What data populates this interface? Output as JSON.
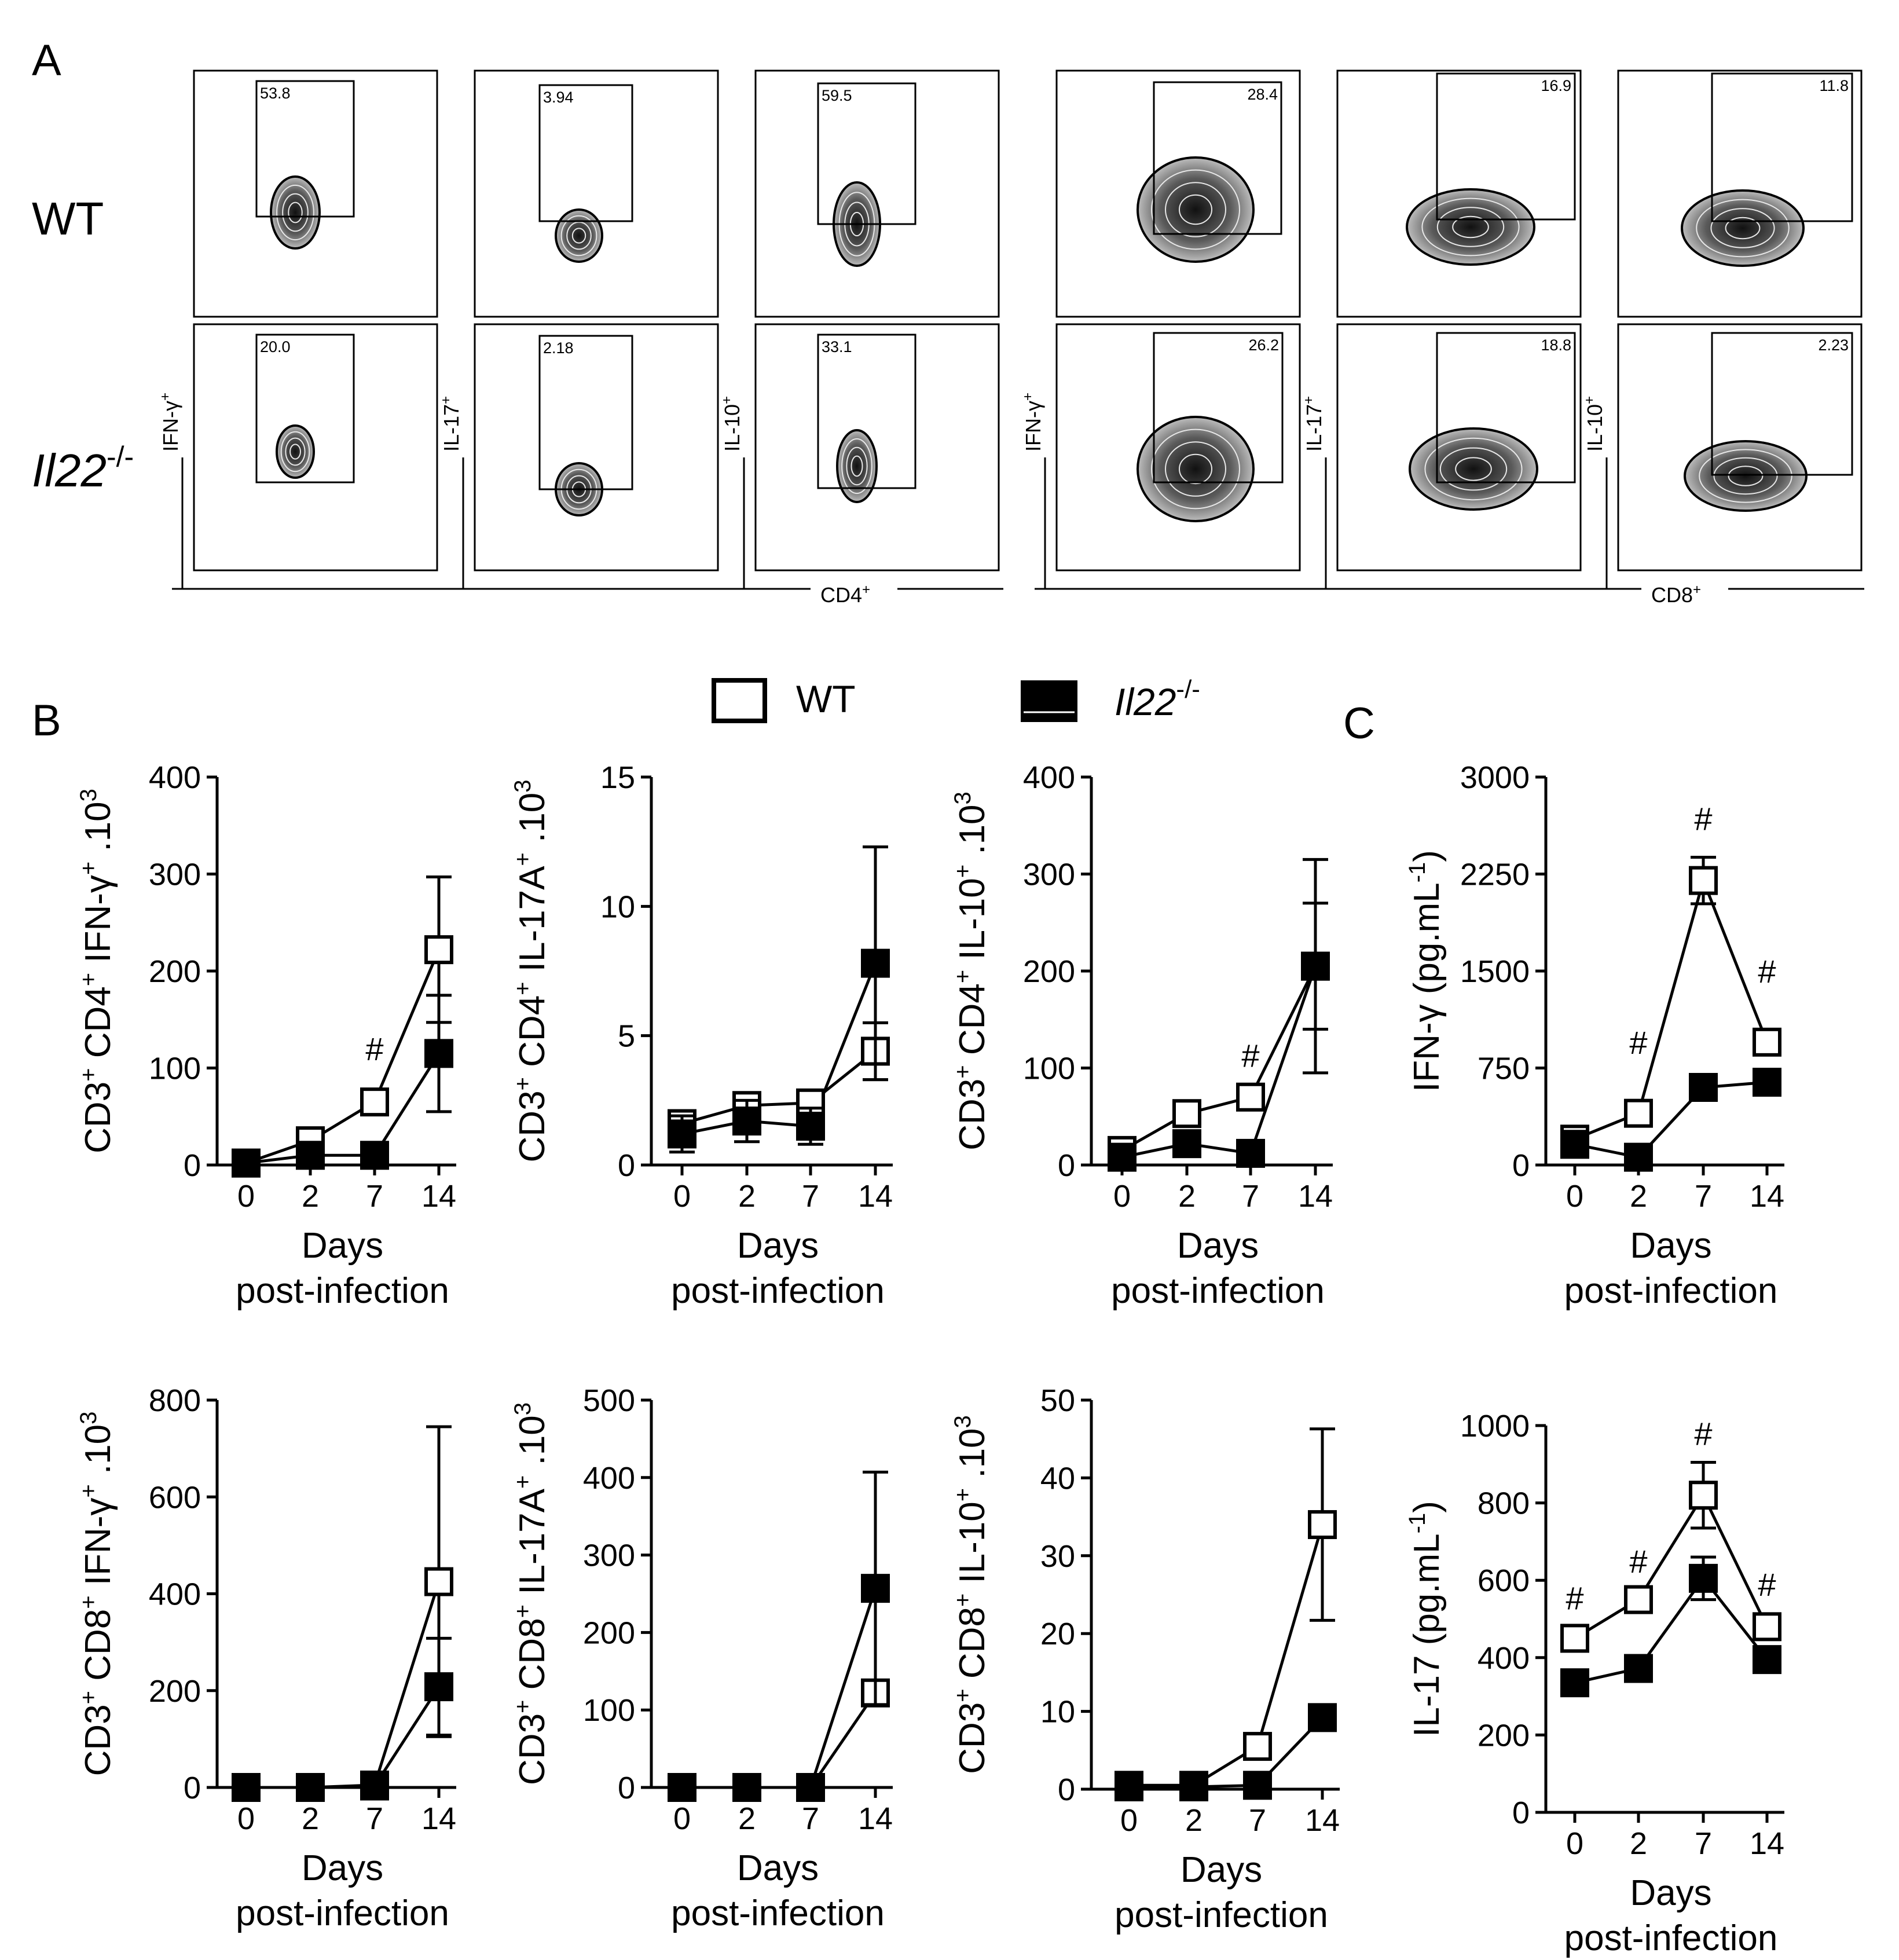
{
  "panel_labels": {
    "a": "A",
    "b": "B",
    "c": "C"
  },
  "legend": {
    "wt_label": "WT",
    "ko_label_italic": "Il22",
    "ko_label_sup": "-/-"
  },
  "flow_cytometry": {
    "row_labels": {
      "wt": "WT",
      "ko_italic": "Il22",
      "ko_sup": "-/-"
    },
    "y_axis_labels": [
      {
        "text": "IFN-γ",
        "sup": "+"
      },
      {
        "text": "IL-17",
        "sup": "+"
      },
      {
        "text": "IL-10",
        "sup": "+"
      },
      {
        "text": "IFN-γ",
        "sup": "+"
      },
      {
        "text": "IL-17",
        "sup": "+"
      },
      {
        "text": "IL-10",
        "sup": "+"
      }
    ],
    "x_group_labels": [
      {
        "text": "CD4",
        "sup": "+"
      },
      {
        "text": "CD8",
        "sup": "+"
      }
    ],
    "gate_values": {
      "wt": [
        "53.8",
        "3.94",
        "59.5",
        "28.4",
        "16.9",
        "11.8"
      ],
      "ko": [
        "20.0",
        "2.18",
        "33.1",
        "26.2",
        "18.8",
        "2.23"
      ]
    }
  },
  "chart_data": [
    {
      "id": "b1",
      "type": "line",
      "categories": [
        "0",
        "2",
        "7",
        "14"
      ],
      "ylabel": "CD3+ CD4+ IFN-γ+ .10³",
      "ylabel_parts": [
        [
          "CD3",
          ""
        ],
        [
          "+",
          "sup"
        ],
        [
          " CD4",
          ""
        ],
        [
          "+",
          "sup"
        ],
        [
          " IFN-γ",
          ""
        ],
        [
          "+",
          "sup"
        ],
        [
          " .10",
          ""
        ],
        [
          "3",
          "sup"
        ]
      ],
      "xlabel": [
        "Days",
        "post-infection"
      ],
      "yticks": [
        0,
        100,
        200,
        300,
        400
      ],
      "ylim": [
        0,
        400
      ],
      "series": [
        {
          "name": "WT",
          "values": [
            2,
            25,
            65,
            222
          ],
          "err": [
            0,
            0,
            0,
            75
          ]
        },
        {
          "name": "Il22-/-",
          "values": [
            2,
            10,
            10,
            115
          ],
          "err": [
            0,
            0,
            0,
            60
          ]
        }
      ],
      "annotations": [
        {
          "text": "#",
          "index": 2,
          "y": 120
        }
      ]
    },
    {
      "id": "b2",
      "type": "line",
      "categories": [
        "0",
        "2",
        "7",
        "14"
      ],
      "ylabel": "CD3+ CD4+ IL-17A+ .10³",
      "ylabel_parts": [
        [
          "CD3",
          ""
        ],
        [
          "+",
          "sup"
        ],
        [
          " CD4",
          ""
        ],
        [
          "+",
          "sup"
        ],
        [
          " IL-17A",
          ""
        ],
        [
          "+",
          "sup"
        ],
        [
          " .10",
          ""
        ],
        [
          "3",
          "sup"
        ]
      ],
      "xlabel": [
        "Days",
        "post-infection"
      ],
      "yticks": [
        0,
        5,
        10,
        15
      ],
      "ylim": [
        0,
        15
      ],
      "series": [
        {
          "name": "WT",
          "values": [
            1.6,
            2.3,
            2.4,
            4.4
          ],
          "err": [
            0.3,
            0.3,
            0.3,
            1.1
          ]
        },
        {
          "name": "Il22-/-",
          "values": [
            1.2,
            1.7,
            1.5,
            7.8
          ],
          "err": [
            0.7,
            0.8,
            0.7,
            4.5
          ]
        }
      ],
      "annotations": []
    },
    {
      "id": "b3",
      "type": "line",
      "categories": [
        "0",
        "2",
        "7",
        "14"
      ],
      "ylabel": "CD3+ CD4+ IL-10+ .10³",
      "ylabel_parts": [
        [
          "CD3",
          ""
        ],
        [
          "+",
          "sup"
        ],
        [
          " CD4",
          ""
        ],
        [
          "+",
          "sup"
        ],
        [
          " IL-10",
          ""
        ],
        [
          "+",
          "sup"
        ],
        [
          " .10",
          ""
        ],
        [
          "3",
          "sup"
        ]
      ],
      "xlabel": [
        "Days",
        "post-infection"
      ],
      "yticks": [
        0,
        100,
        200,
        300,
        400
      ],
      "ylim": [
        0,
        400
      ],
      "series": [
        {
          "name": "WT",
          "values": [
            15,
            53,
            70,
            205
          ],
          "err": [
            0,
            0,
            0,
            65
          ]
        },
        {
          "name": "Il22-/-",
          "values": [
            8,
            22,
            12,
            205
          ],
          "err": [
            0,
            0,
            0,
            110
          ]
        }
      ],
      "annotations": [
        {
          "text": "#",
          "index": 2,
          "y": 113
        }
      ]
    },
    {
      "id": "c1",
      "type": "line",
      "categories": [
        "0",
        "2",
        "7",
        "14"
      ],
      "ylabel": "IFN-γ (pg.mL⁻¹)",
      "ylabel_parts": [
        [
          "IFN-γ (pg.mL",
          ""
        ],
        [
          "-1",
          "sup"
        ],
        [
          ")",
          ""
        ]
      ],
      "xlabel": [
        "Days",
        "post-infection"
      ],
      "yticks": [
        0,
        750,
        1500,
        2250,
        3000
      ],
      "ylim": [
        0,
        3000
      ],
      "series": [
        {
          "name": "WT",
          "values": [
            200,
            400,
            2200,
            950
          ],
          "err": [
            0,
            0,
            180,
            0
          ]
        },
        {
          "name": "Il22-/-",
          "values": [
            160,
            60,
            600,
            640
          ],
          "err": [
            0,
            0,
            0,
            0
          ]
        }
      ],
      "annotations": [
        {
          "text": "#",
          "index": 1,
          "y": 950
        },
        {
          "text": "#",
          "index": 2,
          "y": 2680
        },
        {
          "text": "#",
          "index": 3,
          "y": 1500
        }
      ]
    },
    {
      "id": "b4",
      "type": "line",
      "categories": [
        "0",
        "2",
        "7",
        "14"
      ],
      "ylabel": "CD3+ CD8+ IFN-γ+ .10³",
      "ylabel_parts": [
        [
          "CD3",
          ""
        ],
        [
          "+",
          "sup"
        ],
        [
          " CD8",
          ""
        ],
        [
          "+",
          "sup"
        ],
        [
          " IFN-γ",
          ""
        ],
        [
          "+",
          "sup"
        ],
        [
          " .10",
          ""
        ],
        [
          "3",
          "sup"
        ]
      ],
      "xlabel": [
        "Days",
        "post-infection"
      ],
      "yticks": [
        0,
        200,
        400,
        600,
        800
      ],
      "ylim": [
        0,
        800
      ],
      "series": [
        {
          "name": "WT",
          "values": [
            0,
            0,
            5,
            425
          ],
          "err": [
            0,
            0,
            0,
            320
          ]
        },
        {
          "name": "Il22-/-",
          "values": [
            0,
            0,
            3,
            208
          ],
          "err": [
            0,
            0,
            0,
            100
          ]
        }
      ],
      "annotations": []
    },
    {
      "id": "b5",
      "type": "line",
      "categories": [
        "0",
        "2",
        "7",
        "14"
      ],
      "ylabel": "CD3+ CD8+ IL-17A+ .10³",
      "ylabel_parts": [
        [
          "CD3",
          ""
        ],
        [
          "+",
          "sup"
        ],
        [
          " CD8",
          ""
        ],
        [
          "+",
          "sup"
        ],
        [
          " IL-17A",
          ""
        ],
        [
          "+",
          "sup"
        ],
        [
          " .10",
          ""
        ],
        [
          "3",
          "sup"
        ]
      ],
      "xlabel": [
        "Days",
        "post-infection"
      ],
      "yticks": [
        0,
        100,
        200,
        300,
        400,
        500
      ],
      "ylim": [
        0,
        500
      ],
      "series": [
        {
          "name": "WT",
          "values": [
            0,
            0,
            0,
            122
          ],
          "err": [
            0,
            0,
            0,
            0
          ]
        },
        {
          "name": "Il22-/-",
          "values": [
            0,
            0,
            0,
            257
          ],
          "err": [
            0,
            0,
            0,
            150
          ]
        }
      ],
      "annotations": []
    },
    {
      "id": "b6",
      "type": "line",
      "categories": [
        "0",
        "2",
        "7",
        "14"
      ],
      "ylabel": "CD3+ CD8+ IL-10+ .10³",
      "ylabel_parts": [
        [
          "CD3",
          ""
        ],
        [
          "+",
          "sup"
        ],
        [
          " CD8",
          ""
        ],
        [
          "+",
          "sup"
        ],
        [
          " IL-10",
          ""
        ],
        [
          "+",
          "sup"
        ],
        [
          " .10",
          ""
        ],
        [
          "3",
          "sup"
        ]
      ],
      "xlabel": [
        "Days",
        "post-infection"
      ],
      "yticks": [
        0,
        10,
        20,
        30,
        40,
        50
      ],
      "ylim": [
        0,
        50
      ],
      "series": [
        {
          "name": "WT",
          "values": [
            0.5,
            0.5,
            5.5,
            34
          ],
          "err": [
            0,
            0,
            1.5,
            12.3
          ]
        },
        {
          "name": "Il22-/-",
          "values": [
            0.3,
            0.3,
            0.5,
            9.2
          ],
          "err": [
            0,
            0,
            0,
            0
          ]
        }
      ],
      "annotations": []
    },
    {
      "id": "c2",
      "type": "line",
      "categories": [
        "0",
        "2",
        "7",
        "14"
      ],
      "ylabel": "IL-17 (pg.mL⁻¹)",
      "ylabel_parts": [
        [
          "IL-17 (pg.mL",
          ""
        ],
        [
          "-1",
          "sup"
        ],
        [
          ")",
          ""
        ]
      ],
      "xlabel": [
        "Days",
        "post-infection"
      ],
      "yticks": [
        0,
        200,
        400,
        600,
        800,
        1000
      ],
      "ylim": [
        0,
        1000
      ],
      "series": [
        {
          "name": "WT",
          "values": [
            450,
            550,
            820,
            480
          ],
          "err": [
            0,
            0,
            85,
            0
          ]
        },
        {
          "name": "Il22-/-",
          "values": [
            335,
            372,
            605,
            395
          ],
          "err": [
            0,
            0,
            55,
            0
          ]
        }
      ],
      "annotations": [
        {
          "text": "#",
          "index": 0,
          "y": 555
        },
        {
          "text": "#",
          "index": 1,
          "y": 650
        },
        {
          "text": "#",
          "index": 2,
          "y": 980
        },
        {
          "text": "#",
          "index": 3,
          "y": 590
        }
      ]
    }
  ]
}
